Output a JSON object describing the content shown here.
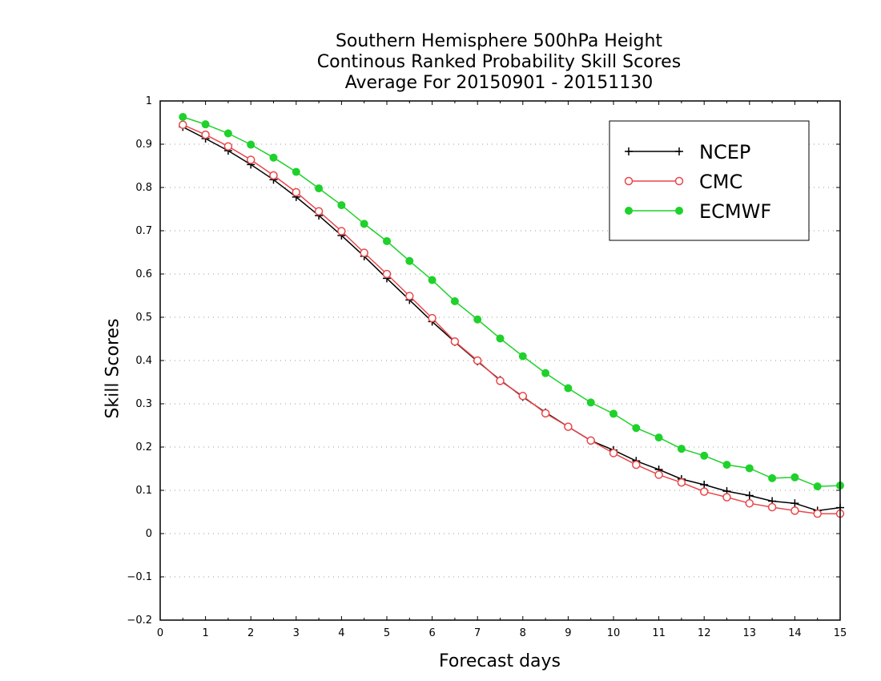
{
  "chart_data": {
    "type": "line",
    "title": [
      "Southern Hemisphere 500hPa Height",
      "Continous Ranked Probability Skill Scores",
      "Average For 20150901 - 20151130"
    ],
    "xlabel": "Forecast days",
    "ylabel": "Skill Scores",
    "xlim": [
      0,
      15
    ],
    "ylim": [
      -0.2,
      1
    ],
    "xticks": [
      0,
      1,
      2,
      3,
      4,
      5,
      6,
      7,
      8,
      9,
      10,
      11,
      12,
      13,
      14,
      15
    ],
    "yticks": [
      -0.2,
      -0.1,
      0,
      0.1,
      0.2,
      0.3,
      0.4,
      0.5,
      0.6,
      0.7,
      0.8,
      0.9,
      1
    ],
    "ytick_labels": [
      "−0.2",
      "−0.1",
      "0",
      "0.1",
      "0.2",
      "0.3",
      "0.4",
      "0.5",
      "0.6",
      "0.7",
      "0.8",
      "0.9",
      "1"
    ],
    "grid": true,
    "legend_position": "top-right",
    "x": [
      0.5,
      1,
      1.5,
      2,
      2.5,
      3,
      3.5,
      4,
      4.5,
      5,
      5.5,
      6,
      6.5,
      7,
      7.5,
      8,
      8.5,
      9,
      9.5,
      10,
      10.5,
      11,
      11.5,
      12,
      12.5,
      13,
      13.5,
      14,
      14.5,
      15
    ],
    "series": [
      {
        "name": "NCEP",
        "color": "#000000",
        "marker": "plus",
        "values": [
          0.94,
          0.913,
          0.885,
          0.853,
          0.818,
          0.778,
          0.735,
          0.689,
          0.641,
          0.59,
          0.54,
          0.49,
          0.443,
          0.398,
          0.355,
          0.316,
          0.28,
          0.247,
          0.215,
          0.193,
          0.168,
          0.148,
          0.126,
          0.113,
          0.098,
          0.088,
          0.075,
          0.07,
          0.053,
          0.06
        ]
      },
      {
        "name": "CMC",
        "color": "#e8474a",
        "marker": "open-circle",
        "values": [
          0.945,
          0.922,
          0.895,
          0.864,
          0.828,
          0.789,
          0.745,
          0.699,
          0.649,
          0.6,
          0.549,
          0.498,
          0.444,
          0.4,
          0.353,
          0.318,
          0.278,
          0.247,
          0.215,
          0.186,
          0.159,
          0.136,
          0.118,
          0.097,
          0.084,
          0.07,
          0.061,
          0.053,
          0.046,
          0.046
        ]
      },
      {
        "name": "ECMWF",
        "color": "#1fd12b",
        "marker": "filled-circle",
        "values": [
          0.963,
          0.946,
          0.925,
          0.899,
          0.869,
          0.836,
          0.798,
          0.759,
          0.716,
          0.676,
          0.63,
          0.586,
          0.537,
          0.495,
          0.451,
          0.41,
          0.371,
          0.336,
          0.303,
          0.277,
          0.244,
          0.222,
          0.196,
          0.18,
          0.159,
          0.151,
          0.128,
          0.13,
          0.109,
          0.111
        ]
      }
    ]
  }
}
